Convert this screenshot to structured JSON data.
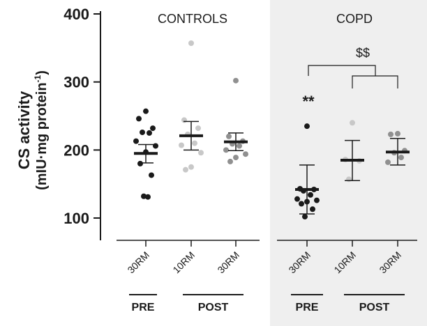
{
  "chart_data": {
    "type": "scatter",
    "ylabel_line1": "CS activity",
    "ylabel_line2": "(mIU·mg protein",
    "ylabel_sup": "-1",
    "ylabel_close": ")",
    "ylim": [
      100,
      400
    ],
    "yticks": [
      100,
      200,
      300,
      400
    ],
    "grid": false,
    "panels": [
      {
        "name": "CONTROLS",
        "shaded": false,
        "groups": [
          {
            "tick": "30RM",
            "phase": "PRE",
            "color": "#1a1a1a",
            "values": [
              257,
              246,
              232,
              226,
              225,
              213,
              206,
              197,
              180,
              163,
              132,
              131
            ],
            "mean": 195,
            "err_low": 181,
            "err_high": 208
          },
          {
            "tick": "10RM",
            "phase": "POST",
            "color": "#c8c8c8",
            "values": [
              357,
              244,
              232,
              223,
              210,
              207,
              196,
              175,
              171
            ],
            "mean": 221,
            "err_low": 200,
            "err_high": 242
          },
          {
            "tick": "30RM",
            "phase": "POST",
            "color": "#909090",
            "values": [
              302,
              220,
              213,
              209,
              206,
              200,
              194,
              189,
              183
            ],
            "mean": 212,
            "err_low": 199,
            "err_high": 225
          }
        ],
        "phase_labels": [
          "PRE",
          "POST"
        ]
      },
      {
        "name": "COPD",
        "shaded": true,
        "groups": [
          {
            "tick": "30RM",
            "phase": "PRE",
            "color": "#1a1a1a",
            "values": [
              235,
              143,
              142,
              140,
              134,
              128,
              126,
              124,
              121,
              113,
              102
            ],
            "mean": 142,
            "err_low": 106,
            "err_high": 178
          },
          {
            "tick": "10RM",
            "phase": "POST",
            "color": "#c8c8c8",
            "values": [
              240,
              186,
              184,
              157
            ],
            "mean": 185,
            "err_low": 155,
            "err_high": 214
          },
          {
            "tick": "30RM",
            "phase": "POST",
            "color": "#909090",
            "values": [
              224,
              223,
              199,
              196,
              189,
              182
            ],
            "mean": 197,
            "err_low": 178,
            "err_high": 217
          }
        ],
        "phase_labels": [
          "PRE",
          "POST"
        ],
        "annotations": [
          "**",
          "$$"
        ]
      }
    ]
  }
}
